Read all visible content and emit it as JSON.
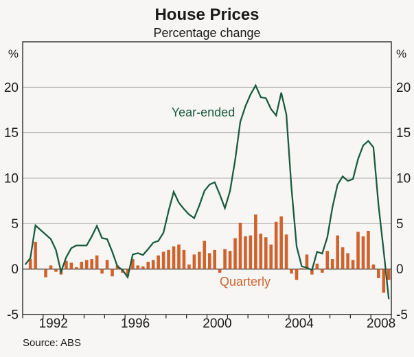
{
  "title": "House Prices",
  "subtitle": "Percentage change",
  "source": "Source: ABS",
  "legend": {
    "line_label": "Year-ended",
    "bar_label": "Quarterly"
  },
  "axis": {
    "unit_left": "%",
    "unit_right": "%",
    "y_tick_labels": [
      20,
      15,
      10,
      5,
      0,
      -5
    ],
    "x_year_labels": [
      "1992",
      "1996",
      "2000",
      "2004",
      "2008"
    ]
  },
  "colors": {
    "line": "#1A5B40",
    "bar": "#D0622D",
    "grid": "#b0afae",
    "zero_line": "#3f3f3f",
    "border": "#2a2a2a",
    "background": "#f7f6f4",
    "text": "#1a1a1a"
  },
  "chart_data": {
    "type": "bar+line",
    "title": "House Prices",
    "subtitle": "Percentage change",
    "unit": "%",
    "ylim": [
      -5,
      25
    ],
    "y_gridlines": [
      20,
      15,
      10,
      5
    ],
    "y_tick_labels": [
      20,
      15,
      10,
      5,
      0,
      -5
    ],
    "grid": true,
    "x_axis_tick_years_start": 1991,
    "x_axis_tick_years_end": 2009,
    "x_year_labels": [
      "1992",
      "1996",
      "2000",
      "2004",
      "2008"
    ],
    "legend_position": "labels drawn inside plot area",
    "source": "Source: ABS",
    "quarters": [
      "1991 Q1",
      "1991 Q2",
      "1991 Q3",
      "1991 Q4",
      "1992 Q1",
      "1992 Q2",
      "1992 Q3",
      "1992 Q4",
      "1993 Q1",
      "1993 Q2",
      "1993 Q3",
      "1993 Q4",
      "1994 Q1",
      "1994 Q2",
      "1994 Q3",
      "1994 Q4",
      "1995 Q1",
      "1995 Q2",
      "1995 Q3",
      "1995 Q4",
      "1996 Q1",
      "1996 Q2",
      "1996 Q3",
      "1996 Q4",
      "1997 Q1",
      "1997 Q2",
      "1997 Q3",
      "1997 Q4",
      "1998 Q1",
      "1998 Q2",
      "1998 Q3",
      "1998 Q4",
      "1999 Q1",
      "1999 Q2",
      "1999 Q3",
      "1999 Q4",
      "2000 Q1",
      "2000 Q2",
      "2000 Q3",
      "2000 Q4",
      "2001 Q1",
      "2001 Q2",
      "2001 Q3",
      "2001 Q4",
      "2002 Q1",
      "2002 Q2",
      "2002 Q3",
      "2002 Q4",
      "2003 Q1",
      "2003 Q2",
      "2003 Q3",
      "2003 Q4",
      "2004 Q1",
      "2004 Q2",
      "2004 Q3",
      "2004 Q4",
      "2005 Q1",
      "2005 Q2",
      "2005 Q3",
      "2005 Q4",
      "2006 Q1",
      "2006 Q2",
      "2006 Q3",
      "2006 Q4",
      "2007 Q1",
      "2007 Q2",
      "2007 Q3",
      "2007 Q4",
      "2008 Q1",
      "2008 Q2",
      "2008 Q3",
      "2008 Q4"
    ],
    "series": [
      {
        "name": "Quarterly",
        "type": "bar",
        "color": "#D0622D",
        "values": [
          0,
          1.1,
          3.0,
          0,
          -0.9,
          0.4,
          -0.3,
          -0.6,
          0.9,
          0.7,
          0.2,
          0.8,
          1.0,
          1.1,
          1.5,
          -0.5,
          1.0,
          -0.8,
          0.4,
          -0.4,
          -0.8,
          1.1,
          0.4,
          0.3,
          0.8,
          1.0,
          1.5,
          1.9,
          2.1,
          2.5,
          2.7,
          2.1,
          0.5,
          1.6,
          1.9,
          3.1,
          1.75,
          2.1,
          -0.4,
          2.2,
          2.0,
          3.4,
          5.1,
          3.6,
          3.7,
          6.0,
          3.9,
          3.5,
          2.7,
          5.2,
          5.8,
          3.8,
          -0.5,
          -1.2,
          0.1,
          1.6,
          -0.6,
          0.6,
          -0.4,
          2.0,
          1.1,
          3.7,
          2.4,
          1.75,
          1.0,
          4.1,
          3.6,
          4.2,
          0.5,
          -1.0,
          -2.6,
          -1.2
        ]
      },
      {
        "name": "Year-ended",
        "type": "line",
        "color": "#1A5B40",
        "values": [
          0.5,
          1.2,
          4.8,
          4.3,
          3.8,
          3.3,
          2.1,
          -0.3,
          1.3,
          2.3,
          2.6,
          2.6,
          2.6,
          3.6,
          4.75,
          3.4,
          3.3,
          1.9,
          0.3,
          -0.1,
          -0.9,
          1.6,
          1.75,
          1.55,
          2.2,
          2.9,
          3.1,
          4.0,
          6.4,
          8.5,
          7.3,
          6.6,
          6.0,
          5.6,
          7.0,
          8.6,
          9.3,
          9.55,
          8.2,
          6.7,
          8.6,
          12.0,
          16.2,
          17.9,
          19.2,
          20.2,
          18.9,
          18.8,
          17.6,
          16.9,
          19.4,
          17.0,
          8.9,
          2.5,
          0.3,
          0.15,
          -0.1,
          1.9,
          1.7,
          3.5,
          6.8,
          9.3,
          10.2,
          9.7,
          9.9,
          12.1,
          13.6,
          14.1,
          13.4,
          7.0,
          2.0,
          -3.3
        ]
      }
    ]
  }
}
